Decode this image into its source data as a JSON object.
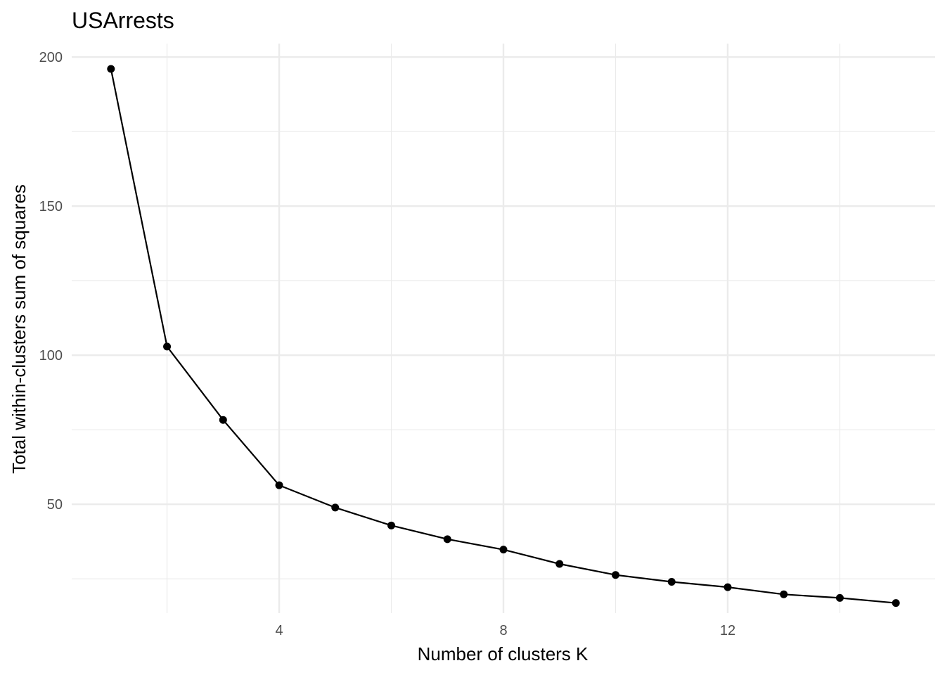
{
  "chart_data": {
    "type": "line",
    "title": "USArrests",
    "xlabel": "Number of clusters K",
    "ylabel": "Total within-clusters sum of squares",
    "x": [
      1,
      2,
      3,
      4,
      5,
      6,
      7,
      8,
      9,
      10,
      11,
      12,
      13,
      14,
      15
    ],
    "series": [
      {
        "values": [
          196,
          102.9,
          78.3,
          56.4,
          48.9,
          42.9,
          38.3,
          34.8,
          30.0,
          26.3,
          24.0,
          22.2,
          19.8,
          18.6,
          16.9
        ],
        "color": "#000000"
      }
    ],
    "xlim": [
      0.3,
      15.7
    ],
    "ylim": [
      13.5,
      204.5
    ],
    "x_ticks": [
      4,
      8,
      12
    ],
    "x_minor_ticks": [
      2,
      6,
      10,
      14
    ],
    "y_ticks": [
      50,
      100,
      150,
      200
    ],
    "y_minor_ticks": [
      25,
      75,
      125,
      175
    ],
    "grid": true,
    "theme": "minimal"
  }
}
